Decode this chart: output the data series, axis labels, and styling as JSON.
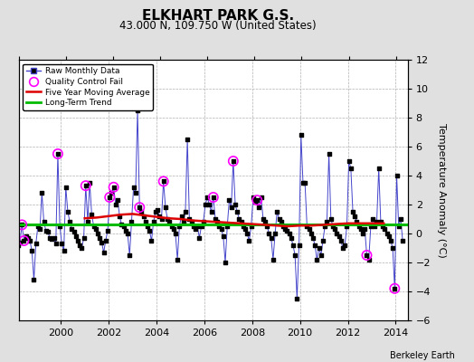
{
  "title": "ELKHART PARK G.S.",
  "subtitle": "43.000 N, 109.750 W (United States)",
  "ylabel": "Temperature Anomaly (°C)",
  "credit": "Berkeley Earth",
  "ylim": [
    -6,
    12
  ],
  "yticks": [
    -6,
    -4,
    -2,
    0,
    2,
    4,
    6,
    8,
    10,
    12
  ],
  "xlim_start": 1998.25,
  "xlim_end": 2014.5,
  "xticks": [
    2000,
    2002,
    2004,
    2006,
    2008,
    2010,
    2012,
    2014
  ],
  "xticklabels": [
    "2000",
    "2002",
    "2004",
    "2006",
    "2008",
    "2010",
    "2012",
    "2014"
  ],
  "background_color": "#e0e0e0",
  "plot_bg_color": "#ffffff",
  "grid_color": "#b0b0b0",
  "raw_line_color": "#4444cc",
  "raw_marker_color": "#000000",
  "moving_avg_color": "#dd0000",
  "trend_color": "#00bb00",
  "qc_fail_color": "#ff00ff",
  "long_term_trend_value": 0.65,
  "raw_data": [
    [
      1998.0417,
      0.6
    ],
    [
      1998.125,
      -0.4
    ],
    [
      1998.2083,
      -0.8
    ],
    [
      1998.2917,
      -0.6
    ],
    [
      1998.375,
      0.6
    ],
    [
      1998.4583,
      -0.5
    ],
    [
      1998.5417,
      -0.2
    ],
    [
      1998.625,
      -0.3
    ],
    [
      1998.7083,
      -0.5
    ],
    [
      1998.7917,
      -1.2
    ],
    [
      1998.875,
      -3.2
    ],
    [
      1998.9583,
      -0.7
    ],
    [
      1999.0417,
      0.5
    ],
    [
      1999.125,
      0.3
    ],
    [
      1999.2083,
      2.8
    ],
    [
      1999.2917,
      0.8
    ],
    [
      1999.375,
      0.2
    ],
    [
      1999.4583,
      0.1
    ],
    [
      1999.5417,
      -0.3
    ],
    [
      1999.625,
      -0.4
    ],
    [
      1999.7083,
      -0.3
    ],
    [
      1999.7917,
      -0.7
    ],
    [
      1999.875,
      5.5
    ],
    [
      1999.9583,
      0.5
    ],
    [
      2000.0417,
      -0.7
    ],
    [
      2000.125,
      -1.2
    ],
    [
      2000.2083,
      3.2
    ],
    [
      2000.2917,
      1.5
    ],
    [
      2000.375,
      0.8
    ],
    [
      2000.4583,
      0.3
    ],
    [
      2000.5417,
      0.1
    ],
    [
      2000.625,
      -0.2
    ],
    [
      2000.7083,
      -0.5
    ],
    [
      2000.7917,
      -0.8
    ],
    [
      2000.875,
      -1.0
    ],
    [
      2000.9583,
      -0.3
    ],
    [
      2001.0417,
      3.3
    ],
    [
      2001.125,
      0.8
    ],
    [
      2001.2083,
      3.5
    ],
    [
      2001.2917,
      1.3
    ],
    [
      2001.375,
      0.5
    ],
    [
      2001.4583,
      0.3
    ],
    [
      2001.5417,
      0.0
    ],
    [
      2001.625,
      -0.3
    ],
    [
      2001.7083,
      -0.6
    ],
    [
      2001.7917,
      -1.3
    ],
    [
      2001.875,
      -0.5
    ],
    [
      2001.9583,
      0.2
    ],
    [
      2002.0417,
      2.5
    ],
    [
      2002.125,
      2.8
    ],
    [
      2002.2083,
      3.2
    ],
    [
      2002.2917,
      2.0
    ],
    [
      2002.375,
      2.3
    ],
    [
      2002.4583,
      1.2
    ],
    [
      2002.5417,
      0.6
    ],
    [
      2002.625,
      0.5
    ],
    [
      2002.7083,
      0.2
    ],
    [
      2002.7917,
      0.0
    ],
    [
      2002.875,
      -1.5
    ],
    [
      2002.9583,
      0.8
    ],
    [
      2003.0417,
      3.2
    ],
    [
      2003.125,
      2.8
    ],
    [
      2003.2083,
      8.5
    ],
    [
      2003.2917,
      1.8
    ],
    [
      2003.375,
      1.5
    ],
    [
      2003.4583,
      1.2
    ],
    [
      2003.5417,
      0.8
    ],
    [
      2003.625,
      0.5
    ],
    [
      2003.7083,
      0.2
    ],
    [
      2003.7917,
      -0.5
    ],
    [
      2003.875,
      0.8
    ],
    [
      2003.9583,
      1.5
    ],
    [
      2004.0417,
      1.6
    ],
    [
      2004.125,
      1.2
    ],
    [
      2004.2083,
      1.0
    ],
    [
      2004.2917,
      3.6
    ],
    [
      2004.375,
      1.8
    ],
    [
      2004.4583,
      1.0
    ],
    [
      2004.5417,
      0.8
    ],
    [
      2004.625,
      0.5
    ],
    [
      2004.7083,
      0.3
    ],
    [
      2004.7917,
      0.0
    ],
    [
      2004.875,
      -1.8
    ],
    [
      2004.9583,
      0.5
    ],
    [
      2005.0417,
      1.2
    ],
    [
      2005.125,
      0.8
    ],
    [
      2005.2083,
      1.5
    ],
    [
      2005.2917,
      6.5
    ],
    [
      2005.375,
      1.0
    ],
    [
      2005.4583,
      0.8
    ],
    [
      2005.5417,
      0.5
    ],
    [
      2005.625,
      0.3
    ],
    [
      2005.7083,
      0.5
    ],
    [
      2005.7917,
      -0.3
    ],
    [
      2005.875,
      0.5
    ],
    [
      2005.9583,
      0.8
    ],
    [
      2006.0417,
      2.0
    ],
    [
      2006.125,
      2.5
    ],
    [
      2006.2083,
      2.0
    ],
    [
      2006.2917,
      1.5
    ],
    [
      2006.375,
      2.5
    ],
    [
      2006.4583,
      1.0
    ],
    [
      2006.5417,
      0.8
    ],
    [
      2006.625,
      0.5
    ],
    [
      2006.7083,
      0.3
    ],
    [
      2006.7917,
      -0.2
    ],
    [
      2006.875,
      -2.0
    ],
    [
      2006.9583,
      0.5
    ],
    [
      2007.0417,
      2.3
    ],
    [
      2007.125,
      1.8
    ],
    [
      2007.2083,
      5.0
    ],
    [
      2007.2917,
      2.0
    ],
    [
      2007.375,
      1.5
    ],
    [
      2007.4583,
      1.0
    ],
    [
      2007.5417,
      0.8
    ],
    [
      2007.625,
      0.5
    ],
    [
      2007.7083,
      0.3
    ],
    [
      2007.7917,
      0.0
    ],
    [
      2007.875,
      -0.5
    ],
    [
      2007.9583,
      0.5
    ],
    [
      2008.0417,
      2.5
    ],
    [
      2008.125,
      2.2
    ],
    [
      2008.2083,
      2.3
    ],
    [
      2008.2917,
      1.8
    ],
    [
      2008.375,
      2.5
    ],
    [
      2008.4583,
      1.0
    ],
    [
      2008.5417,
      0.8
    ],
    [
      2008.625,
      0.5
    ],
    [
      2008.7083,
      0.0
    ],
    [
      2008.7917,
      -0.3
    ],
    [
      2008.875,
      -1.8
    ],
    [
      2008.9583,
      0.0
    ],
    [
      2009.0417,
      1.5
    ],
    [
      2009.125,
      1.0
    ],
    [
      2009.2083,
      0.8
    ],
    [
      2009.2917,
      0.5
    ],
    [
      2009.375,
      0.3
    ],
    [
      2009.4583,
      0.2
    ],
    [
      2009.5417,
      0.0
    ],
    [
      2009.625,
      -0.3
    ],
    [
      2009.7083,
      -0.8
    ],
    [
      2009.7917,
      -1.5
    ],
    [
      2009.875,
      -4.5
    ],
    [
      2009.9583,
      -0.8
    ],
    [
      2010.0417,
      6.8
    ],
    [
      2010.125,
      3.5
    ],
    [
      2010.2083,
      3.5
    ],
    [
      2010.2917,
      0.5
    ],
    [
      2010.375,
      0.3
    ],
    [
      2010.4583,
      0.0
    ],
    [
      2010.5417,
      -0.3
    ],
    [
      2010.625,
      -0.8
    ],
    [
      2010.7083,
      -1.8
    ],
    [
      2010.7917,
      -1.0
    ],
    [
      2010.875,
      -1.5
    ],
    [
      2010.9583,
      -0.5
    ],
    [
      2011.0417,
      0.5
    ],
    [
      2011.125,
      0.8
    ],
    [
      2011.2083,
      5.5
    ],
    [
      2011.2917,
      1.0
    ],
    [
      2011.375,
      0.5
    ],
    [
      2011.4583,
      0.3
    ],
    [
      2011.5417,
      0.0
    ],
    [
      2011.625,
      -0.2
    ],
    [
      2011.7083,
      -0.5
    ],
    [
      2011.7917,
      -1.0
    ],
    [
      2011.875,
      -0.8
    ],
    [
      2011.9583,
      0.5
    ],
    [
      2012.0417,
      5.0
    ],
    [
      2012.125,
      4.5
    ],
    [
      2012.2083,
      1.5
    ],
    [
      2012.2917,
      1.2
    ],
    [
      2012.375,
      0.8
    ],
    [
      2012.4583,
      0.5
    ],
    [
      2012.5417,
      0.3
    ],
    [
      2012.625,
      0.0
    ],
    [
      2012.7083,
      0.3
    ],
    [
      2012.7917,
      -1.5
    ],
    [
      2012.875,
      -1.8
    ],
    [
      2012.9583,
      0.5
    ],
    [
      2013.0417,
      1.0
    ],
    [
      2013.125,
      0.5
    ],
    [
      2013.2083,
      0.8
    ],
    [
      2013.2917,
      4.5
    ],
    [
      2013.375,
      0.8
    ],
    [
      2013.4583,
      0.5
    ],
    [
      2013.5417,
      0.3
    ],
    [
      2013.625,
      0.0
    ],
    [
      2013.7083,
      -0.2
    ],
    [
      2013.7917,
      -0.5
    ],
    [
      2013.875,
      -1.0
    ],
    [
      2013.9583,
      -3.8
    ],
    [
      2014.0417,
      4.0
    ],
    [
      2014.125,
      0.5
    ],
    [
      2014.2083,
      1.0
    ],
    [
      2014.2917,
      -0.5
    ]
  ],
  "qc_fail_points": [
    [
      1998.375,
      0.6
    ],
    [
      1998.4583,
      -0.5
    ],
    [
      1999.875,
      5.5
    ],
    [
      2001.0417,
      3.3
    ],
    [
      2002.0417,
      2.5
    ],
    [
      2002.2083,
      3.2
    ],
    [
      2003.2917,
      1.8
    ],
    [
      2004.2917,
      3.6
    ],
    [
      2006.375,
      2.5
    ],
    [
      2007.2083,
      5.0
    ],
    [
      2008.2083,
      2.3
    ],
    [
      2012.7917,
      -1.5
    ],
    [
      2013.9583,
      -3.8
    ]
  ],
  "moving_avg_data": [
    [
      2001.0,
      1.05
    ],
    [
      2001.5,
      1.1
    ],
    [
      2002.0,
      1.2
    ],
    [
      2002.5,
      1.3
    ],
    [
      2003.0,
      1.35
    ],
    [
      2003.5,
      1.25
    ],
    [
      2004.0,
      1.15
    ],
    [
      2004.5,
      1.05
    ],
    [
      2005.0,
      1.0
    ],
    [
      2005.5,
      0.9
    ],
    [
      2006.0,
      0.85
    ],
    [
      2006.5,
      0.8
    ],
    [
      2007.0,
      0.75
    ],
    [
      2007.5,
      0.7
    ],
    [
      2008.0,
      0.65
    ],
    [
      2008.5,
      0.6
    ],
    [
      2009.0,
      0.55
    ],
    [
      2009.5,
      0.5
    ],
    [
      2010.0,
      0.55
    ],
    [
      2010.5,
      0.55
    ],
    [
      2011.0,
      0.6
    ],
    [
      2011.5,
      0.65
    ],
    [
      2012.0,
      0.7
    ],
    [
      2012.5,
      0.7
    ],
    [
      2013.0,
      0.7
    ],
    [
      2013.5,
      0.7
    ]
  ]
}
